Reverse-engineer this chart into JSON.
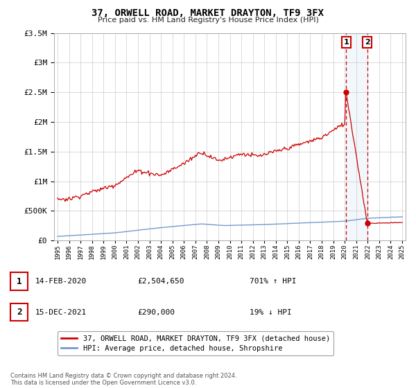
{
  "title": "37, ORWELL ROAD, MARKET DRAYTON, TF9 3FX",
  "subtitle": "Price paid vs. HM Land Registry's House Price Index (HPI)",
  "legend_line1": "37, ORWELL ROAD, MARKET DRAYTON, TF9 3FX (detached house)",
  "legend_line2": "HPI: Average price, detached house, Shropshire",
  "annotation1_label": "1",
  "annotation1_date": "14-FEB-2020",
  "annotation1_price": "£2,504,650",
  "annotation1_hpi": "701% ↑ HPI",
  "annotation2_label": "2",
  "annotation2_date": "15-DEC-2021",
  "annotation2_price": "£290,000",
  "annotation2_hpi": "19% ↓ HPI",
  "footnote": "Contains HM Land Registry data © Crown copyright and database right 2024.\nThis data is licensed under the Open Government Licence v3.0.",
  "hpi_color": "#7799cc",
  "price_color": "#cc0000",
  "annotation_box_color": "#cc0000",
  "ylim_min": 0,
  "ylim_max": 3500000,
  "xstart": 1995,
  "xend": 2025,
  "sale1_year": 2020.12,
  "sale1_price": 2504650,
  "sale2_year": 2021.96,
  "sale2_price": 290000
}
